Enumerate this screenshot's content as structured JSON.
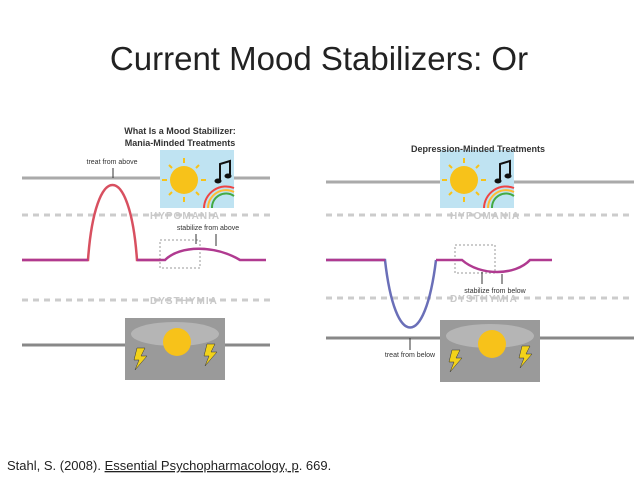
{
  "header": {
    "title": "Current Mood Stabilizers: Or"
  },
  "left_panel": {
    "heading": "What Is a Mood Stabilizer:",
    "subheading": "Mania-Minded Treatments",
    "treat_label": "treat from above",
    "upper_zone": "HYPOMANIA",
    "stabilize_label": "stabilize from above",
    "lower_zone": "DYSTHYMIA"
  },
  "right_panel": {
    "heading": "Depression-Minded Treatments",
    "upper_zone": "HYPOMANIA",
    "stabilize_label": "stabilize from below",
    "lower_zone": "DYSTHYMIA",
    "treat_label": "treat from below"
  },
  "citation": {
    "prefix": "Stahl, S. (2008). ",
    "book": "Essential Psychopharmacology, p",
    "suffix": ". 669."
  }
}
